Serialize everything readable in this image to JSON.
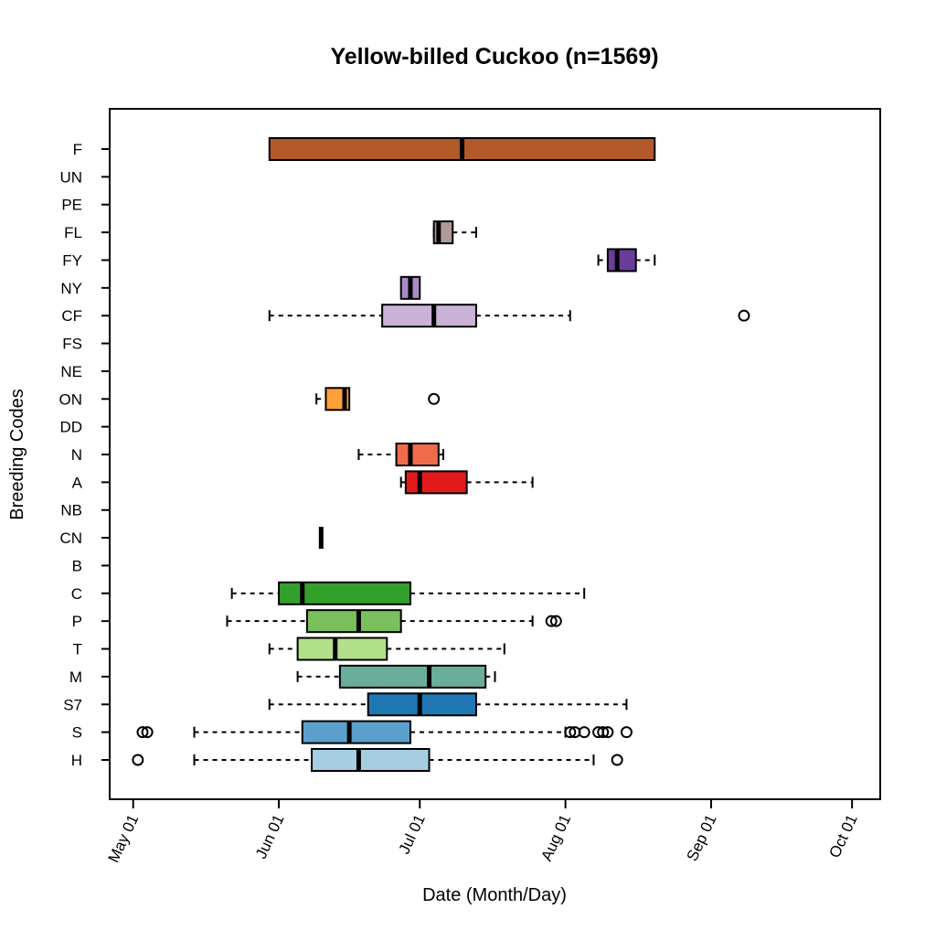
{
  "chart_data": {
    "type": "box",
    "title": "Yellow-billed Cuckoo (n=1569)",
    "xlabel": "Date (Month/Day)",
    "ylabel": "Breeding Codes",
    "x_ticks": [
      {
        "date": "2000-05-01",
        "label": "May 01"
      },
      {
        "date": "2000-06-01",
        "label": "Jun 01"
      },
      {
        "date": "2000-07-01",
        "label": "Jul 01"
      },
      {
        "date": "2000-08-01",
        "label": "Aug 01"
      },
      {
        "date": "2000-09-01",
        "label": "Sep 01"
      },
      {
        "date": "2000-10-01",
        "label": "Oct 01"
      }
    ],
    "xlim": [
      "2000-04-26",
      "2000-10-07"
    ],
    "categories": [
      "F",
      "UN",
      "PE",
      "FL",
      "FY",
      "NY",
      "CF",
      "FS",
      "NE",
      "ON",
      "DD",
      "N",
      "A",
      "NB",
      "CN",
      "B",
      "C",
      "P",
      "T",
      "M",
      "S7",
      "S",
      "H"
    ],
    "boxes": [
      {
        "code": "F",
        "color": "#b15928",
        "whisker_low": null,
        "q1": "2000-05-30",
        "median": "2000-07-10",
        "q3": "2000-08-20",
        "whisker_high": null,
        "outliers": []
      },
      {
        "code": "FL",
        "color": "#b09a98",
        "whisker_low": "2000-07-04",
        "q1": "2000-07-04",
        "median": "2000-07-05",
        "q3": "2000-07-08",
        "whisker_high": "2000-07-13",
        "outliers": []
      },
      {
        "code": "FY",
        "color": "#6a3d9a",
        "whisker_low": "2000-08-08",
        "q1": "2000-08-10",
        "median": "2000-08-12",
        "q3": "2000-08-16",
        "whisker_high": "2000-08-20",
        "outliers": []
      },
      {
        "code": "NY",
        "color": "#a88bc6",
        "whisker_low": null,
        "q1": "2000-06-27",
        "median": "2000-06-29",
        "q3": "2000-07-01",
        "whisker_high": null,
        "outliers": []
      },
      {
        "code": "CF",
        "color": "#cab2d6",
        "whisker_low": "2000-05-30",
        "q1": "2000-06-23",
        "median": "2000-07-04",
        "q3": "2000-07-13",
        "whisker_high": "2000-08-02",
        "outliers": [
          "2000-09-08"
        ]
      },
      {
        "code": "ON",
        "color": "#ff9f3a",
        "whisker_low": "2000-06-09",
        "q1": "2000-06-11",
        "median": "2000-06-15",
        "q3": "2000-06-16",
        "whisker_high": null,
        "outliers": [
          "2000-07-04"
        ]
      },
      {
        "code": "N",
        "color": "#f06b4a",
        "whisker_low": "2000-06-18",
        "q1": "2000-06-26",
        "median": "2000-06-29",
        "q3": "2000-07-05",
        "whisker_high": "2000-07-06",
        "outliers": []
      },
      {
        "code": "A",
        "color": "#e31a1c",
        "whisker_low": "2000-06-27",
        "q1": "2000-06-28",
        "median": "2000-07-01",
        "q3": "2000-07-11",
        "whisker_high": "2000-07-25",
        "outliers": []
      },
      {
        "code": "CN",
        "color": "#000000",
        "whisker_low": null,
        "q1": "2000-06-10",
        "median": "2000-06-10",
        "q3": "2000-06-10",
        "whisker_high": null,
        "outliers": []
      },
      {
        "code": "C",
        "color": "#33a02c",
        "whisker_low": "2000-05-22",
        "q1": "2000-06-01",
        "median": "2000-06-06",
        "q3": "2000-06-29",
        "whisker_high": "2000-08-05",
        "outliers": []
      },
      {
        "code": "P",
        "color": "#79c05c",
        "whisker_low": "2000-05-21",
        "q1": "2000-06-07",
        "median": "2000-06-18",
        "q3": "2000-06-27",
        "whisker_high": "2000-07-25",
        "outliers": [
          "2000-07-29",
          "2000-07-30"
        ]
      },
      {
        "code": "T",
        "color": "#b2df8a",
        "whisker_low": "2000-05-30",
        "q1": "2000-06-05",
        "median": "2000-06-13",
        "q3": "2000-06-24",
        "whisker_high": "2000-07-19",
        "outliers": []
      },
      {
        "code": "M",
        "color": "#69ad9a",
        "whisker_low": "2000-06-05",
        "q1": "2000-06-14",
        "median": "2000-07-03",
        "q3": "2000-07-15",
        "whisker_high": "2000-07-17",
        "outliers": []
      },
      {
        "code": "S7",
        "color": "#1f78b4",
        "whisker_low": "2000-05-30",
        "q1": "2000-06-20",
        "median": "2000-07-01",
        "q3": "2000-07-13",
        "whisker_high": "2000-08-14",
        "outliers": []
      },
      {
        "code": "S",
        "color": "#5ba0cc",
        "whisker_low": "2000-05-14",
        "q1": "2000-06-06",
        "median": "2000-06-16",
        "q3": "2000-06-29",
        "whisker_high": "2000-08-01",
        "outliers": [
          "2000-05-03",
          "2000-05-04",
          "2000-08-02",
          "2000-08-03",
          "2000-08-05",
          "2000-08-08",
          "2000-08-09",
          "2000-08-10",
          "2000-08-14"
        ]
      },
      {
        "code": "H",
        "color": "#a6cee3",
        "whisker_low": "2000-05-14",
        "q1": "2000-06-08",
        "median": "2000-06-18",
        "q3": "2000-07-03",
        "whisker_high": "2000-08-07",
        "outliers": [
          "2000-05-02",
          "2000-08-12"
        ]
      }
    ]
  }
}
